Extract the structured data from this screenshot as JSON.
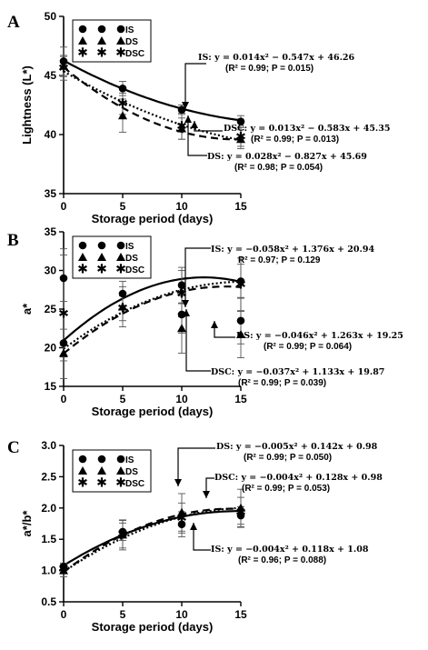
{
  "panel_labels": [
    "A",
    "B",
    "C"
  ],
  "chart_data": [
    {
      "type": "scatter",
      "panel": "A",
      "ylabel": "Lightness (L*)",
      "xlabel": "Storage period (days)",
      "xlim": [
        0,
        15
      ],
      "ylim": [
        35,
        50
      ],
      "xticks": [
        0,
        5,
        10,
        15
      ],
      "yticks": [
        35,
        40,
        45,
        50
      ],
      "legend": [
        "IS",
        "DS",
        "DSC"
      ],
      "series": [
        {
          "name": "IS",
          "marker": "circle",
          "line": "solid",
          "x": [
            0,
            5,
            10,
            15
          ],
          "y": [
            46.2,
            43.9,
            42.1,
            41.1
          ],
          "err": [
            1.2,
            0.6,
            0.4,
            0.5
          ],
          "fit": [
            0.014,
            -0.547,
            46.26
          ]
        },
        {
          "name": "DS",
          "marker": "triangle",
          "line": "dash",
          "x": [
            0,
            5,
            10,
            15
          ],
          "y": [
            45.8,
            41.6,
            40.5,
            39.6
          ],
          "err": [
            0.9,
            1.4,
            0.9,
            0.8
          ],
          "fit": [
            0.028,
            -0.827,
            45.69
          ]
        },
        {
          "name": "DSC",
          "marker": "star",
          "line": "dot",
          "x": [
            0,
            5,
            10,
            15
          ],
          "y": [
            45.6,
            42.6,
            40.7,
            39.8
          ],
          "err": [
            1.0,
            0.9,
            1.1,
            0.8
          ],
          "fit": [
            0.013,
            -0.583,
            45.35
          ]
        }
      ],
      "annotations": [
        {
          "series": "IS",
          "lines": [
            "IS: y = 0.014x² − 0.547x + 46.26",
            "(R² = 0.99; P = 0.015)"
          ]
        },
        {
          "series": "DSC",
          "lines": [
            "DSC: y = 0.013x² − 0.583x + 45.35",
            "(R² = 0.99; P = 0.013)"
          ]
        },
        {
          "series": "DS",
          "lines": [
            "DS: y = 0.028x² − 0.827x + 45.69",
            "(R² = 0.98; P = 0.054)"
          ]
        }
      ]
    },
    {
      "type": "scatter",
      "panel": "B",
      "ylabel": "a*",
      "xlabel": "Storage period (days)",
      "xlim": [
        0,
        15
      ],
      "ylim": [
        15,
        35
      ],
      "xticks": [
        0,
        5,
        10,
        15
      ],
      "yticks": [
        15,
        20,
        25,
        30,
        35
      ],
      "legend": [
        "IS",
        "DS",
        "DSC"
      ],
      "series": [
        {
          "name": "IS",
          "marker": "circle",
          "line": "solid",
          "x": [
            0,
            0,
            5,
            10,
            10,
            15,
            15
          ],
          "y": [
            29.0,
            20.6,
            27.0,
            28.1,
            24.3,
            28.6,
            23.5
          ],
          "err": [
            3.0,
            1.8,
            1.6,
            2.3,
            2.4,
            2.2,
            3.0
          ],
          "fit": [
            -0.058,
            1.376,
            20.94
          ]
        },
        {
          "name": "DS",
          "marker": "triangle",
          "line": "dash",
          "x": [
            0,
            5,
            10,
            15
          ],
          "y": [
            19.3,
            25.3,
            22.5,
            21.7
          ],
          "err": [
            1.0,
            2.6,
            3.2,
            3.0
          ],
          "fit": [
            -0.046,
            1.263,
            19.25
          ]
        },
        {
          "name": "DSC",
          "marker": "star",
          "line": "dot",
          "x": [
            0,
            5,
            10,
            15
          ],
          "y": [
            24.4,
            25.1,
            27.0,
            28.2
          ],
          "err": [
            8.4,
            1.6,
            3.0,
            3.4
          ],
          "fit": [
            -0.037,
            1.133,
            19.87
          ]
        }
      ],
      "annotations": [
        {
          "series": "IS",
          "lines": [
            "IS: y = −0.058x² + 1.376x + 20.94",
            "R² = 0.97; P = 0.129"
          ]
        },
        {
          "series": "DS",
          "lines": [
            "DS: y = −0.046x² + 1.263x + 19.25",
            "(R² = 0.99; P = 0.064)"
          ]
        },
        {
          "series": "DSC",
          "lines": [
            "DSC: y = −0.037x² + 1.133x + 19.87",
            "(R² = 0.99; P = 0.039)"
          ]
        }
      ]
    },
    {
      "type": "scatter",
      "panel": "C",
      "ylabel": "a*/b*",
      "xlabel": "Storage period (days)",
      "xlim": [
        0,
        15
      ],
      "ylim": [
        0.5,
        3.0
      ],
      "xticks": [
        0,
        5,
        10,
        15
      ],
      "yticks": [
        0.5,
        1.0,
        1.5,
        2.0,
        2.5,
        3.0
      ],
      "legend": [
        "IS",
        "DS",
        "DSC"
      ],
      "series": [
        {
          "name": "IS",
          "marker": "circle",
          "line": "solid",
          "x": [
            0,
            5,
            10,
            15
          ],
          "y": [
            1.06,
            1.62,
            1.74,
            1.88
          ],
          "err": [
            0.06,
            0.14,
            0.2,
            0.14
          ],
          "fit": [
            -0.004,
            0.118,
            1.08
          ]
        },
        {
          "name": "DS",
          "marker": "triangle",
          "line": "dash",
          "x": [
            0,
            5,
            10,
            15
          ],
          "y": [
            1.0,
            1.57,
            1.93,
            2.0
          ],
          "err": [
            0.1,
            0.24,
            0.3,
            0.3
          ],
          "fit": [
            -0.005,
            0.142,
            0.98
          ]
        },
        {
          "name": "DSC",
          "marker": "star",
          "line": "dot",
          "x": [
            0,
            5,
            10,
            15
          ],
          "y": [
            1.03,
            1.58,
            1.84,
            1.93
          ],
          "err": [
            0.06,
            0.22,
            0.24,
            0.24
          ],
          "fit": [
            -0.004,
            0.128,
            0.98
          ]
        }
      ],
      "annotations": [
        {
          "series": "DS",
          "lines": [
            "DS: y = −0.005x² + 0.142x + 0.98",
            "(R² = 0.99; P = 0.050)"
          ]
        },
        {
          "series": "DSC",
          "lines": [
            "DSC: y = −0.004x² + 0.128x + 0.98",
            "(R² = 0.99; P = 0.053)"
          ]
        },
        {
          "series": "IS",
          "lines": [
            "IS: y = −0.004x² + 0.118x + 1.08",
            "(R² = 0.96; P = 0.088)"
          ]
        }
      ]
    }
  ]
}
